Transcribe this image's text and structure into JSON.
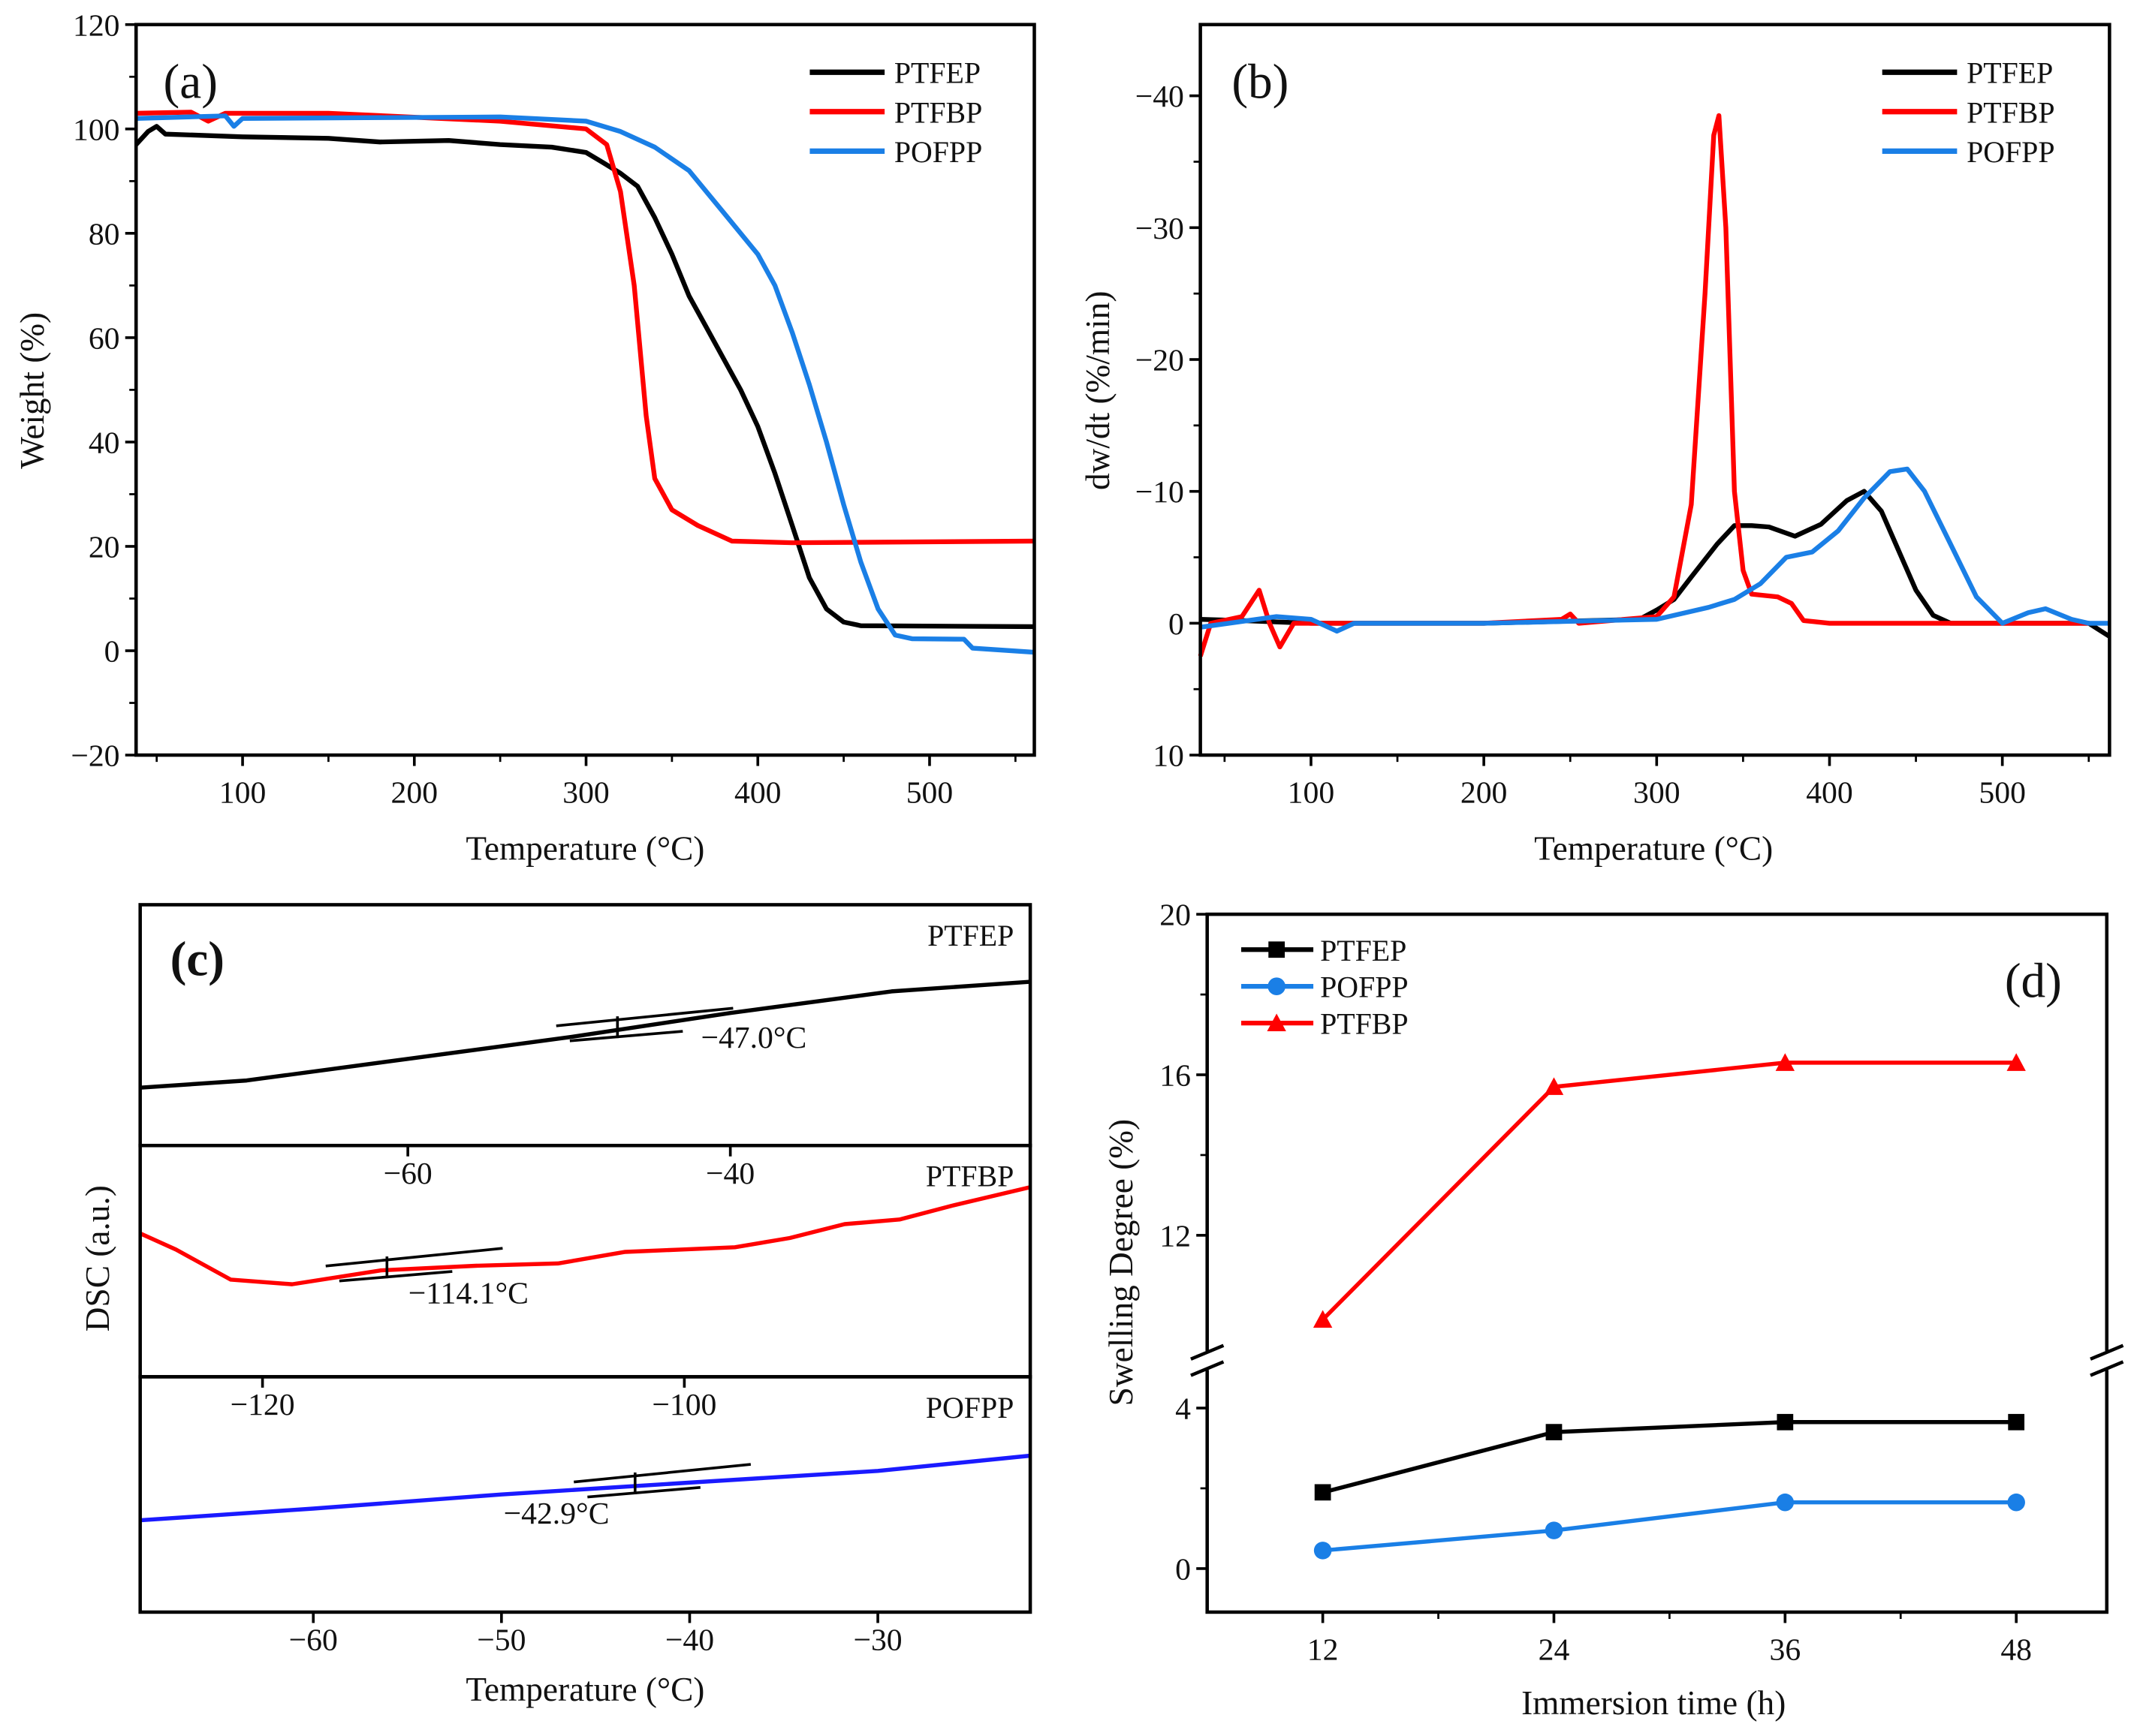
{
  "chart_data": [
    {
      "id": "a",
      "type": "line",
      "panel_label": "(a)",
      "xlabel": "Temperature (°C)",
      "ylabel": "Weight (%)",
      "xlim": [
        38,
        561
      ],
      "ylim": [
        -20,
        120
      ],
      "xticks": [
        100,
        200,
        300,
        400,
        500
      ],
      "yticks": [
        -20,
        0,
        20,
        40,
        60,
        80,
        100,
        120
      ],
      "legend_position": "top-right",
      "series": [
        {
          "name": "PTFEP",
          "color": "#000000",
          "points": [
            [
              38,
              97
            ],
            [
              45,
              99.5
            ],
            [
              50,
              100.5
            ],
            [
              55,
              99
            ],
            [
              100,
              98.5
            ],
            [
              150,
              98.2
            ],
            [
              180,
              97.5
            ],
            [
              220,
              97.8
            ],
            [
              250,
              97
            ],
            [
              280,
              96.5
            ],
            [
              300,
              95.5
            ],
            [
              310,
              93.5
            ],
            [
              320,
              91.5
            ],
            [
              330,
              89
            ],
            [
              340,
              83
            ],
            [
              350,
              76
            ],
            [
              360,
              68
            ],
            [
              370,
              62
            ],
            [
              380,
              56
            ],
            [
              390,
              50
            ],
            [
              400,
              43
            ],
            [
              410,
              34
            ],
            [
              420,
              24
            ],
            [
              430,
              14
            ],
            [
              440,
              8
            ],
            [
              450,
              5.5
            ],
            [
              460,
              4.8
            ],
            [
              561,
              4.6
            ]
          ]
        },
        {
          "name": "PTFBP",
          "color": "#ff0000",
          "points": [
            [
              38,
              103
            ],
            [
              70,
              103.2
            ],
            [
              80,
              101.5
            ],
            [
              90,
              103
            ],
            [
              150,
              103
            ],
            [
              250,
              101.5
            ],
            [
              300,
              100
            ],
            [
              312,
              97
            ],
            [
              320,
              88
            ],
            [
              328,
              70
            ],
            [
              335,
              45
            ],
            [
              340,
              33
            ],
            [
              350,
              27
            ],
            [
              365,
              24
            ],
            [
              385,
              21
            ],
            [
              420,
              20.7
            ],
            [
              561,
              21
            ]
          ]
        },
        {
          "name": "POFPP",
          "color": "#1a7fe6",
          "points": [
            [
              38,
              102
            ],
            [
              90,
              102.5
            ],
            [
              95,
              100.5
            ],
            [
              100,
              102
            ],
            [
              250,
              102.3
            ],
            [
              300,
              101.5
            ],
            [
              320,
              99.5
            ],
            [
              340,
              96.5
            ],
            [
              360,
              92
            ],
            [
              380,
              84
            ],
            [
              400,
              76
            ],
            [
              410,
              70
            ],
            [
              420,
              61
            ],
            [
              430,
              51
            ],
            [
              440,
              40
            ],
            [
              450,
              28
            ],
            [
              460,
              17
            ],
            [
              470,
              8
            ],
            [
              480,
              3
            ],
            [
              490,
              2.3
            ],
            [
              520,
              2.2
            ],
            [
              525,
              0.5
            ],
            [
              561,
              -0.3
            ]
          ]
        }
      ]
    },
    {
      "id": "b",
      "type": "line",
      "panel_label": "(b)",
      "xlabel": "Temperature (°C)",
      "ylabel": "dw/dt (%/min)",
      "xlim": [
        36,
        562
      ],
      "ylim": [
        10,
        -45.4
      ],
      "y_inverted": true,
      "xticks": [
        100,
        200,
        300,
        400,
        500
      ],
      "yticks": [
        -40,
        -30,
        -20,
        -10,
        0,
        10
      ],
      "legend_position": "top-right",
      "series": [
        {
          "name": "PTFEP",
          "color": "#000000",
          "points": [
            [
              36,
              -0.3
            ],
            [
              60,
              -0.2
            ],
            [
              100,
              0
            ],
            [
              200,
              0
            ],
            [
              290,
              -0.3
            ],
            [
              300,
              -1
            ],
            [
              310,
              -1.8
            ],
            [
              320,
              -3.5
            ],
            [
              335,
              -6
            ],
            [
              345,
              -7.4
            ],
            [
              355,
              -7.4
            ],
            [
              365,
              -7.3
            ],
            [
              380,
              -6.6
            ],
            [
              395,
              -7.5
            ],
            [
              410,
              -9.3
            ],
            [
              420,
              -10
            ],
            [
              430,
              -8.5
            ],
            [
              440,
              -5.5
            ],
            [
              450,
              -2.5
            ],
            [
              460,
              -0.6
            ],
            [
              470,
              0
            ],
            [
              550,
              0
            ],
            [
              562,
              1
            ]
          ]
        },
        {
          "name": "PTFBP",
          "color": "#ff0000",
          "points": [
            [
              36,
              2.5
            ],
            [
              42,
              0
            ],
            [
              60,
              -0.5
            ],
            [
              70,
              -2.5
            ],
            [
              76,
              0
            ],
            [
              82,
              1.8
            ],
            [
              90,
              0
            ],
            [
              100,
              0
            ],
            [
              200,
              0
            ],
            [
              245,
              -0.3
            ],
            [
              250,
              -0.7
            ],
            [
              255,
              0
            ],
            [
              300,
              -0.5
            ],
            [
              310,
              -2
            ],
            [
              320,
              -9
            ],
            [
              328,
              -25
            ],
            [
              333,
              -37
            ],
            [
              336,
              -38.5
            ],
            [
              340,
              -30
            ],
            [
              345,
              -10
            ],
            [
              350,
              -4
            ],
            [
              355,
              -2.2
            ],
            [
              370,
              -2
            ],
            [
              378,
              -1.5
            ],
            [
              385,
              -0.2
            ],
            [
              400,
              0
            ],
            [
              550,
              0
            ]
          ]
        },
        {
          "name": "POFPP",
          "color": "#1a7fe6",
          "points": [
            [
              36,
              0.3
            ],
            [
              80,
              -0.5
            ],
            [
              100,
              -0.3
            ],
            [
              115,
              0.6
            ],
            [
              125,
              0
            ],
            [
              200,
              0
            ],
            [
              300,
              -0.3
            ],
            [
              330,
              -1.2
            ],
            [
              345,
              -1.8
            ],
            [
              360,
              -3
            ],
            [
              375,
              -5
            ],
            [
              390,
              -5.4
            ],
            [
              405,
              -7
            ],
            [
              420,
              -9.5
            ],
            [
              435,
              -11.5
            ],
            [
              445,
              -11.7
            ],
            [
              455,
              -10
            ],
            [
              470,
              -6
            ],
            [
              485,
              -2
            ],
            [
              500,
              0
            ],
            [
              515,
              -0.8
            ],
            [
              525,
              -1.1
            ],
            [
              540,
              -0.3
            ],
            [
              550,
              0
            ],
            [
              562,
              0
            ]
          ]
        }
      ]
    },
    {
      "id": "c",
      "type": "line",
      "panel_label": "(c)",
      "xlabel": "Temperature (°C)",
      "ylabel": "DSC (a.u.)",
      "subpanels": [
        {
          "name": "PTFEP",
          "color": "#000000",
          "xlim": [
            -76.6,
            -21.4
          ],
          "ylim": [
            0,
            1
          ],
          "xticks": [
            -60,
            -40
          ],
          "tg": -47.0,
          "tg_label": "−47.0°C",
          "points": [
            [
              -76.6,
              0.24
            ],
            [
              -70,
              0.27
            ],
            [
              -60,
              0.36
            ],
            [
              -50,
              0.45
            ],
            [
              -40,
              0.55
            ],
            [
              -30,
              0.64
            ],
            [
              -21.4,
              0.68
            ]
          ]
        },
        {
          "name": "PTFBP",
          "color": "#ff0000",
          "xlim": [
            -125.8,
            -83.6
          ],
          "ylim": [
            0,
            1
          ],
          "xticks": [
            -120,
            -100
          ],
          "tg": -114.1,
          "tg_label": "−114.1°C",
          "points": [
            [
              -125.8,
              0.62
            ],
            [
              -124.1,
              0.55
            ],
            [
              -121.5,
              0.42
            ],
            [
              -118.6,
              0.4
            ],
            [
              -114.4,
              0.46
            ],
            [
              -109.9,
              0.48
            ],
            [
              -106,
              0.49
            ],
            [
              -102.8,
              0.54
            ],
            [
              -100.2,
              0.55
            ],
            [
              -97.6,
              0.56
            ],
            [
              -95,
              0.6
            ],
            [
              -92.4,
              0.66
            ],
            [
              -89.8,
              0.68
            ],
            [
              -87.3,
              0.74
            ],
            [
              -83.6,
              0.82
            ]
          ]
        },
        {
          "name": "POFPP",
          "color": "#1a1aff",
          "xlim": [
            -69.2,
            -21.9
          ],
          "ylim": [
            0,
            1
          ],
          "xticks": [
            -60,
            -50,
            -40,
            -30
          ],
          "tg": -42.9,
          "tg_label": "−42.9°C",
          "points": [
            [
              -69.2,
              0.39
            ],
            [
              -60,
              0.44
            ],
            [
              -50,
              0.5
            ],
            [
              -40,
              0.55
            ],
            [
              -30,
              0.6
            ],
            [
              -21.9,
              0.665
            ]
          ]
        }
      ]
    },
    {
      "id": "d",
      "type": "line",
      "panel_label": "(d)",
      "xlabel": "Immersion time (h)",
      "ylabel": "Swelling Degree (%)",
      "xlim": [
        6,
        52.7
      ],
      "ylim": [
        -1.1,
        20
      ],
      "y_axis_break": [
        5.2,
        9
      ],
      "xticks": [
        12,
        24,
        36,
        48
      ],
      "yticks": [
        0,
        4,
        12,
        16,
        20
      ],
      "legend_position": "top-left",
      "categories": [
        12,
        24,
        36,
        48
      ],
      "series": [
        {
          "name": "PTFEP",
          "color": "#000000",
          "marker": "square",
          "values": [
            1.9,
            3.4,
            3.65,
            3.65
          ]
        },
        {
          "name": "POFPP",
          "color": "#1a7fe6",
          "marker": "circle",
          "values": [
            0.45,
            0.95,
            1.65,
            1.65
          ]
        },
        {
          "name": "PTFBP",
          "color": "#ff0000",
          "marker": "triangle",
          "values": [
            9.9,
            15.7,
            16.3,
            16.3
          ]
        }
      ]
    }
  ]
}
